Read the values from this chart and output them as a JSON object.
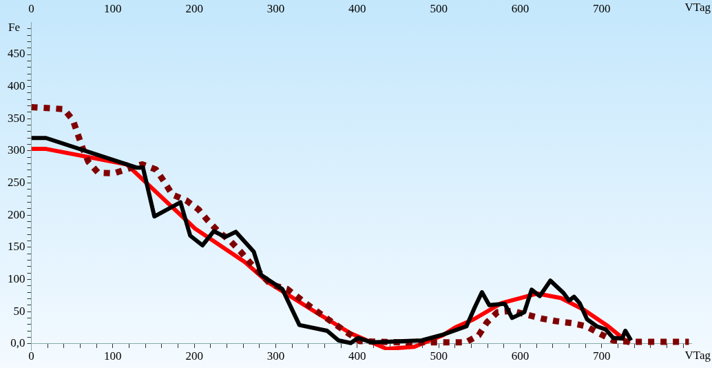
{
  "chart_data": {
    "type": "line",
    "xlabel": "VTag",
    "x2label": "VTag",
    "ylabel": "Fe",
    "xlim": [
      0,
      810
    ],
    "x2lim": [
      0,
      810
    ],
    "xticks": [
      0,
      {
        "value": 20,
        "label": null
      },
      {
        "value": 40,
        "label": null
      },
      {
        "value": 60,
        "label": null
      },
      {
        "value": 80,
        "label": null
      },
      100,
      {
        "value": 120,
        "label": null
      },
      {
        "value": 140,
        "label": null
      },
      {
        "value": 160,
        "label": null
      },
      {
        "value": 180,
        "label": null
      },
      200,
      {
        "value": 220,
        "label": null
      },
      {
        "value": 240,
        "label": null
      },
      {
        "value": 260,
        "label": null
      },
      {
        "value": 280,
        "label": null
      },
      300,
      {
        "value": 320,
        "label": null
      },
      {
        "value": 340,
        "label": null
      },
      {
        "value": 360,
        "label": null
      },
      {
        "value": 380,
        "label": null
      },
      400,
      {
        "value": 420,
        "label": null
      },
      {
        "value": 440,
        "label": null
      },
      {
        "value": 460,
        "label": null
      },
      {
        "value": 480,
        "label": null
      },
      500,
      {
        "value": 520,
        "label": null
      },
      {
        "value": 540,
        "label": null
      },
      {
        "value": 560,
        "label": null
      },
      {
        "value": 580,
        "label": null
      },
      600,
      {
        "value": 620,
        "label": null
      },
      {
        "value": 640,
        "label": null
      },
      {
        "value": 660,
        "label": null
      },
      {
        "value": 680,
        "label": null
      },
      700,
      {
        "value": 720,
        "label": null
      },
      {
        "value": 740,
        "label": null
      },
      {
        "value": 760,
        "label": null
      },
      {
        "value": 780,
        "label": null
      },
      {
        "value": 800,
        "label": null
      }
    ],
    "x2ticks": [
      0,
      100,
      200,
      300,
      400,
      500,
      600,
      700
    ],
    "ylim": [
      -10,
      500
    ],
    "yticks": [
      {
        "value": 0,
        "label": "0,0"
      },
      {
        "value": 10,
        "label": null
      },
      {
        "value": 20,
        "label": null
      },
      {
        "value": 30,
        "label": null
      },
      {
        "value": 40,
        "label": null
      },
      50,
      {
        "value": 60,
        "label": null
      },
      {
        "value": 70,
        "label": null
      },
      {
        "value": 80,
        "label": null
      },
      {
        "value": 90,
        "label": null
      },
      100,
      {
        "value": 110,
        "label": null
      },
      {
        "value": 120,
        "label": null
      },
      {
        "value": 130,
        "label": null
      },
      {
        "value": 140,
        "label": null
      },
      150,
      {
        "value": 160,
        "label": null
      },
      {
        "value": 170,
        "label": null
      },
      {
        "value": 180,
        "label": null
      },
      {
        "value": 190,
        "label": null
      },
      200,
      {
        "value": 210,
        "label": null
      },
      {
        "value": 220,
        "label": null
      },
      {
        "value": 230,
        "label": null
      },
      {
        "value": 240,
        "label": null
      },
      250,
      {
        "value": 260,
        "label": null
      },
      {
        "value": 270,
        "label": null
      },
      {
        "value": 280,
        "label": null
      },
      {
        "value": 290,
        "label": null
      },
      300,
      {
        "value": 310,
        "label": null
      },
      {
        "value": 320,
        "label": null
      },
      {
        "value": 330,
        "label": null
      },
      {
        "value": 340,
        "label": null
      },
      350,
      {
        "value": 360,
        "label": null
      },
      {
        "value": 370,
        "label": null
      },
      {
        "value": 380,
        "label": null
      },
      {
        "value": 390,
        "label": null
      },
      400,
      {
        "value": 410,
        "label": null
      },
      {
        "value": 420,
        "label": null
      },
      {
        "value": 430,
        "label": null
      },
      {
        "value": 440,
        "label": null
      },
      450,
      {
        "value": 460,
        "label": null
      },
      {
        "value": 470,
        "label": null
      },
      {
        "value": 480,
        "label": null
      },
      {
        "value": 490,
        "label": null
      }
    ],
    "grid": false,
    "legend": false,
    "marker": "none",
    "series": [
      {
        "color": "#000000",
        "line_style": "solid",
        "x": [
          0,
          18,
          129,
          137,
          151,
          183,
          195,
          210,
          224,
          238,
          251,
          273,
          282,
          308,
          329,
          363,
          377,
          392,
          401,
          418,
          479,
          505,
          534,
          544,
          553,
          562,
          581,
          590,
          605,
          614,
          624,
          637,
          653,
          660,
          666,
          673,
          682,
          694,
          705,
          714,
          725,
          729,
          736
        ],
        "values": [
          320,
          320,
          274,
          274,
          198,
          220,
          168,
          153,
          175,
          166,
          174,
          143,
          107,
          85,
          29,
          20,
          5,
          1,
          9,
          2,
          5,
          14,
          27,
          56,
          80,
          60,
          62,
          40,
          49,
          84,
          74,
          98,
          79,
          67,
          73,
          63,
          38,
          27,
          22,
          9,
          8,
          20,
          5
        ]
      },
      {
        "color": "#800000",
        "line_style": "dotted",
        "x": [
          0,
          40,
          51,
          57,
          63,
          70,
          82,
          101,
          118,
          136,
          153,
          163,
          173,
          190,
          205,
          217,
          230,
          244,
          257,
          269,
          294,
          314,
          342,
          373,
          403,
          450,
          533,
          549,
          559,
          572,
          590,
          608,
          627,
          644,
          663,
          681,
          697,
          714,
          733,
          807
        ],
        "values": [
          368,
          365,
          348,
          326,
          304,
          283,
          266,
          265,
          272,
          279,
          271,
          252,
          232,
          223,
          209,
          191,
          174,
          160,
          143,
          125,
          92,
          85,
          58,
          30,
          4,
          2,
          2,
          13,
          33,
          49,
          51,
          45,
          39,
          35,
          32,
          27,
          16,
          5,
          3,
          3
        ]
      },
      {
        "color": "#ff0000",
        "line_style": "solid",
        "x": [
          0,
          18,
          117,
          201,
          262,
          290,
          349,
          392,
          436,
          470,
          505,
          520,
          543,
          577,
          621,
          650,
          679,
          708,
          734
        ],
        "values": [
          303,
          303,
          279,
          179,
          127,
          96,
          49,
          16,
          -8,
          -5,
          13,
          25,
          38,
          63,
          78,
          71,
          52,
          27,
          0
        ]
      }
    ]
  }
}
